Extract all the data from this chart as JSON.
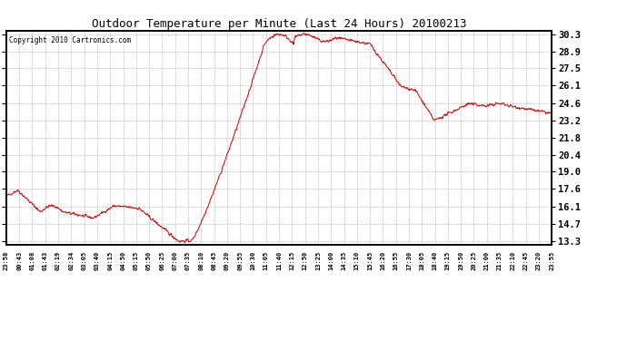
{
  "title": "Outdoor Temperature per Minute (Last 24 Hours) 20100213",
  "copyright": "Copyright 2010 Cartronics.com",
  "line_color": "#cc0000",
  "background_color": "#ffffff",
  "plot_background": "#ffffff",
  "grid_color": "#999999",
  "yticks": [
    13.3,
    14.7,
    16.1,
    17.6,
    19.0,
    20.4,
    21.8,
    23.2,
    24.6,
    26.1,
    27.5,
    28.9,
    30.3
  ],
  "ymin": 13.0,
  "ymax": 30.6,
  "xtick_labels": [
    "23:58",
    "00:43",
    "01:08",
    "01:43",
    "02:19",
    "02:34",
    "03:05",
    "03:40",
    "04:15",
    "04:50",
    "05:15",
    "05:50",
    "06:25",
    "07:00",
    "07:35",
    "08:10",
    "08:45",
    "09:20",
    "09:55",
    "10:30",
    "11:05",
    "11:40",
    "12:15",
    "12:50",
    "13:25",
    "14:00",
    "14:35",
    "15:10",
    "15:45",
    "16:20",
    "16:55",
    "17:30",
    "18:05",
    "18:40",
    "19:15",
    "19:50",
    "20:25",
    "21:00",
    "21:35",
    "22:10",
    "22:45",
    "23:20",
    "23:55"
  ]
}
